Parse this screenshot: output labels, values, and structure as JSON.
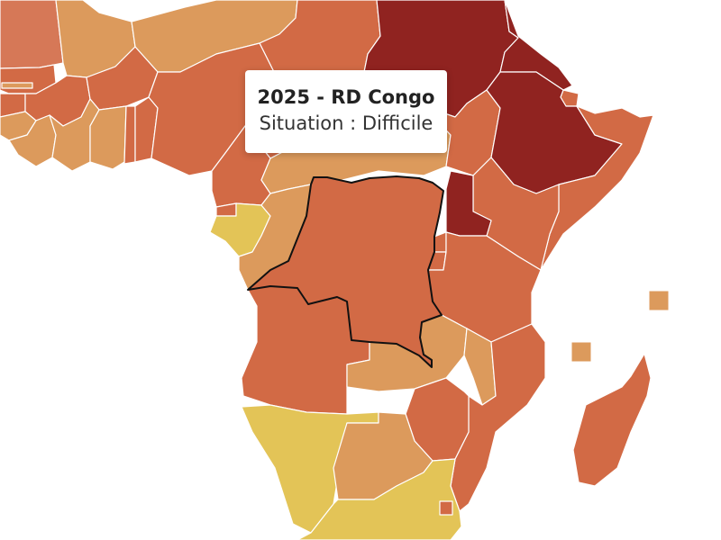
{
  "tooltip": {
    "title": "2025 - RD Congo",
    "status_label": "Situation",
    "separator": " : ",
    "status_value": "Difficile"
  },
  "palette": {
    "very_serious": "#902320",
    "difficult": "#d26a45",
    "problematic": "#dc9a5c",
    "satisfactory": "#e3c457",
    "highlight_border": "#111111"
  },
  "highlighted_country": "RD Congo",
  "countries": [
    {
      "id": "mauritania",
      "status": "difficult"
    },
    {
      "id": "mali",
      "status": "problematic"
    },
    {
      "id": "niger",
      "status": "problematic"
    },
    {
      "id": "chad",
      "status": "difficult"
    },
    {
      "id": "sudan",
      "status": "very_serious"
    },
    {
      "id": "eritrea",
      "status": "very_serious"
    },
    {
      "id": "djibouti",
      "status": "difficult"
    },
    {
      "id": "senegal",
      "status": "difficult"
    },
    {
      "id": "gambia",
      "status": "problematic"
    },
    {
      "id": "guinea-bissau",
      "status": "difficult"
    },
    {
      "id": "guinea",
      "status": "difficult"
    },
    {
      "id": "sierra-leone",
      "status": "problematic"
    },
    {
      "id": "liberia",
      "status": "problematic"
    },
    {
      "id": "burkina-faso",
      "status": "difficult"
    },
    {
      "id": "cote-divoire",
      "status": "problematic"
    },
    {
      "id": "ghana",
      "status": "problematic"
    },
    {
      "id": "togo",
      "status": "difficult"
    },
    {
      "id": "benin",
      "status": "difficult"
    },
    {
      "id": "nigeria",
      "status": "difficult"
    },
    {
      "id": "cameroon",
      "status": "difficult"
    },
    {
      "id": "central-african-republic",
      "status": "problematic"
    },
    {
      "id": "south-sudan",
      "status": "difficult"
    },
    {
      "id": "ethiopia",
      "status": "very_serious"
    },
    {
      "id": "somalia",
      "status": "difficult"
    },
    {
      "id": "kenya",
      "status": "difficult"
    },
    {
      "id": "uganda",
      "status": "very_serious"
    },
    {
      "id": "equatorial-guinea",
      "status": "difficult"
    },
    {
      "id": "gabon",
      "status": "satisfactory"
    },
    {
      "id": "congo-brazzaville",
      "status": "problematic"
    },
    {
      "id": "dr-congo",
      "status": "difficult"
    },
    {
      "id": "rwanda",
      "status": "difficult"
    },
    {
      "id": "burundi",
      "status": "difficult"
    },
    {
      "id": "tanzania",
      "status": "difficult"
    },
    {
      "id": "angola",
      "status": "difficult"
    },
    {
      "id": "zambia",
      "status": "problematic"
    },
    {
      "id": "malawi",
      "status": "problematic"
    },
    {
      "id": "mozambique",
      "status": "difficult"
    },
    {
      "id": "zimbabwe",
      "status": "difficult"
    },
    {
      "id": "namibia",
      "status": "satisfactory"
    },
    {
      "id": "botswana",
      "status": "problematic"
    },
    {
      "id": "south-africa",
      "status": "satisfactory"
    },
    {
      "id": "eswatini",
      "status": "difficult"
    },
    {
      "id": "madagascar",
      "status": "difficult"
    },
    {
      "id": "seychelles",
      "status": "problematic"
    },
    {
      "id": "comoros",
      "status": "problematic"
    }
  ]
}
